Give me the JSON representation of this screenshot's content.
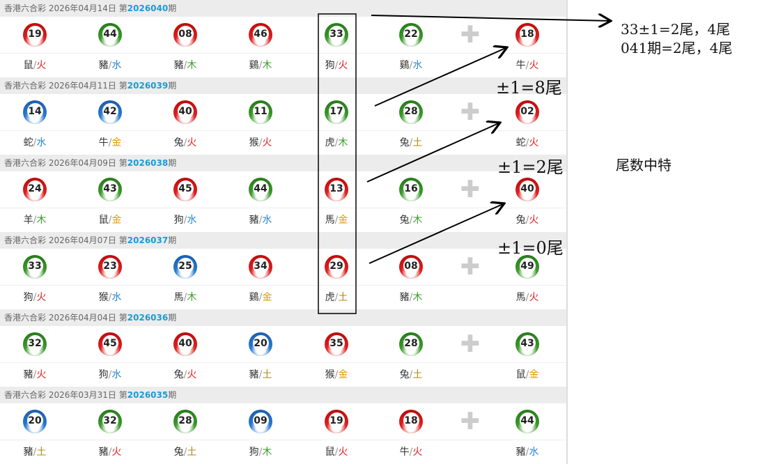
{
  "draws": [
    {
      "lottery": "香港六合彩",
      "date": "2026年04月14日",
      "prefix": "第",
      "period": "2026040",
      "suffix": "期",
      "balls": [
        {
          "n": "19",
          "c": "red",
          "z": "鼠",
          "e": "火"
        },
        {
          "n": "44",
          "c": "green",
          "z": "豬",
          "e": "水"
        },
        {
          "n": "08",
          "c": "red",
          "z": "豬",
          "e": "木"
        },
        {
          "n": "46",
          "c": "red",
          "z": "鷄",
          "e": "木"
        },
        {
          "n": "33",
          "c": "green",
          "z": "狗",
          "e": "火"
        },
        {
          "n": "22",
          "c": "green",
          "z": "鷄",
          "e": "水"
        },
        {
          "n": "18",
          "c": "red",
          "z": "牛",
          "e": "火"
        }
      ]
    },
    {
      "lottery": "香港六合彩",
      "date": "2026年04月11日",
      "prefix": "第",
      "period": "2026039",
      "suffix": "期",
      "balls": [
        {
          "n": "14",
          "c": "blue",
          "z": "蛇",
          "e": "水"
        },
        {
          "n": "42",
          "c": "blue",
          "z": "牛",
          "e": "金"
        },
        {
          "n": "40",
          "c": "red",
          "z": "兔",
          "e": "火"
        },
        {
          "n": "11",
          "c": "green",
          "z": "猴",
          "e": "火"
        },
        {
          "n": "17",
          "c": "green",
          "z": "虎",
          "e": "木"
        },
        {
          "n": "28",
          "c": "green",
          "z": "兔",
          "e": "土"
        },
        {
          "n": "02",
          "c": "red",
          "z": "蛇",
          "e": "火"
        }
      ]
    },
    {
      "lottery": "香港六合彩",
      "date": "2026年04月09日",
      "prefix": "第",
      "period": "2026038",
      "suffix": "期",
      "balls": [
        {
          "n": "24",
          "c": "red",
          "z": "羊",
          "e": "木"
        },
        {
          "n": "43",
          "c": "green",
          "z": "鼠",
          "e": "金"
        },
        {
          "n": "45",
          "c": "red",
          "z": "狗",
          "e": "水"
        },
        {
          "n": "44",
          "c": "green",
          "z": "豬",
          "e": "水"
        },
        {
          "n": "13",
          "c": "red",
          "z": "馬",
          "e": "金"
        },
        {
          "n": "16",
          "c": "green",
          "z": "兔",
          "e": "木"
        },
        {
          "n": "40",
          "c": "red",
          "z": "兔",
          "e": "火"
        }
      ]
    },
    {
      "lottery": "香港六合彩",
      "date": "2026年04月07日",
      "prefix": "第",
      "period": "2026037",
      "suffix": "期",
      "balls": [
        {
          "n": "33",
          "c": "green",
          "z": "狗",
          "e": "火"
        },
        {
          "n": "23",
          "c": "red",
          "z": "猴",
          "e": "水"
        },
        {
          "n": "25",
          "c": "blue",
          "z": "馬",
          "e": "木"
        },
        {
          "n": "34",
          "c": "red",
          "z": "鷄",
          "e": "金"
        },
        {
          "n": "29",
          "c": "red",
          "z": "虎",
          "e": "土"
        },
        {
          "n": "08",
          "c": "red",
          "z": "豬",
          "e": "木"
        },
        {
          "n": "49",
          "c": "green",
          "z": "馬",
          "e": "火"
        }
      ]
    },
    {
      "lottery": "香港六合彩",
      "date": "2026年04月04日",
      "prefix": "第",
      "period": "2026036",
      "suffix": "期",
      "balls": [
        {
          "n": "32",
          "c": "green",
          "z": "豬",
          "e": "火"
        },
        {
          "n": "45",
          "c": "red",
          "z": "狗",
          "e": "水"
        },
        {
          "n": "40",
          "c": "red",
          "z": "兔",
          "e": "火"
        },
        {
          "n": "20",
          "c": "blue",
          "z": "豬",
          "e": "土"
        },
        {
          "n": "35",
          "c": "red",
          "z": "猴",
          "e": "金"
        },
        {
          "n": "28",
          "c": "green",
          "z": "兔",
          "e": "土"
        },
        {
          "n": "43",
          "c": "green",
          "z": "鼠",
          "e": "金"
        }
      ]
    },
    {
      "lottery": "香港六合彩",
      "date": "2026年03月31日",
      "prefix": "第",
      "period": "2026035",
      "suffix": "期",
      "balls": [
        {
          "n": "20",
          "c": "blue",
          "z": "豬",
          "e": "土"
        },
        {
          "n": "32",
          "c": "green",
          "z": "豬",
          "e": "火"
        },
        {
          "n": "28",
          "c": "green",
          "z": "兔",
          "e": "土"
        },
        {
          "n": "09",
          "c": "blue",
          "z": "狗",
          "e": "木"
        },
        {
          "n": "19",
          "c": "red",
          "z": "鼠",
          "e": "火"
        },
        {
          "n": "18",
          "c": "red",
          "z": "牛",
          "e": "火"
        },
        {
          "n": "44",
          "c": "green",
          "z": "豬",
          "e": "水"
        }
      ]
    }
  ],
  "separator": "/",
  "plus_icon": "plus-icon",
  "annotations": {
    "note1": "33±1=2尾，4尾",
    "note2": "041期=2尾，4尾",
    "tail1": "±1=8尾",
    "tail2": "±1=2尾",
    "tail3": "±1=0尾",
    "summary": "尾数中特"
  }
}
